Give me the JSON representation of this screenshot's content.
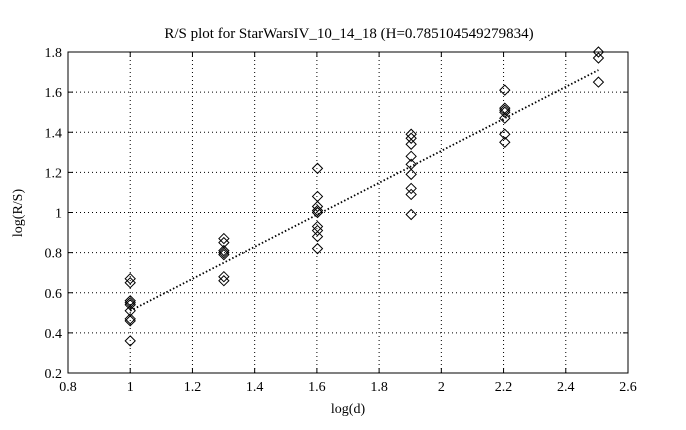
{
  "chart_data": {
    "type": "scatter",
    "title": "R/S plot for StarWarsIV_10_14_18 (H=0.785104549279834)",
    "xlabel": "log(d)",
    "ylabel": "log(R/S)",
    "xlim": [
      0.8,
      2.6
    ],
    "ylim": [
      0.2,
      1.8
    ],
    "xticks": [
      0.8,
      1,
      1.2,
      1.4,
      1.6,
      1.8,
      2,
      2.2,
      2.4,
      2.6
    ],
    "xtick_labels": [
      "0.8",
      "1",
      "1.2",
      "1.4",
      "1.6",
      "1.8",
      "2",
      "2.2",
      "2.4",
      "2.6"
    ],
    "yticks": [
      0.2,
      0.4,
      0.6,
      0.8,
      1,
      1.2,
      1.4,
      1.6,
      1.8
    ],
    "ytick_labels": [
      "0.2",
      "0.4",
      "0.6",
      "0.8",
      "1",
      "1.2",
      "1.4",
      "1.6",
      "1.8"
    ],
    "grid": true,
    "marker": "diamond",
    "colors": {
      "marker": "#000000",
      "line": "#000000",
      "grid": "#000000"
    },
    "series": [
      {
        "x": [
          1,
          1,
          1,
          1,
          1,
          1,
          1,
          1,
          1,
          1.301,
          1.301,
          1.301,
          1.301,
          1.301,
          1.301,
          1.301,
          1.602,
          1.602,
          1.602,
          1.602,
          1.602,
          1.602,
          1.602,
          1.602,
          1.602,
          1.903,
          1.903,
          1.903,
          1.903,
          1.903,
          1.903,
          1.903,
          1.903,
          1.903,
          2.204,
          2.204,
          2.204,
          2.204,
          2.204,
          2.204,
          2.204,
          2.505,
          2.505,
          2.505
        ],
        "y": [
          0.67,
          0.65,
          0.56,
          0.55,
          0.51,
          0.47,
          0.46,
          0.36,
          0.54,
          0.87,
          0.85,
          0.81,
          0.79,
          0.68,
          0.66,
          0.8,
          1.22,
          1.08,
          1.03,
          1.01,
          1.0,
          0.93,
          0.91,
          0.88,
          0.82,
          1.39,
          1.37,
          1.34,
          1.28,
          1.24,
          1.19,
          1.12,
          1.09,
          0.99,
          1.61,
          1.52,
          1.51,
          1.5,
          1.47,
          1.39,
          1.35,
          1.8,
          1.77,
          1.65
        ]
      }
    ],
    "fit_line": {
      "style": "dotted",
      "x": [
        1,
        2.505
      ],
      "y": [
        0.51,
        1.71
      ]
    }
  }
}
